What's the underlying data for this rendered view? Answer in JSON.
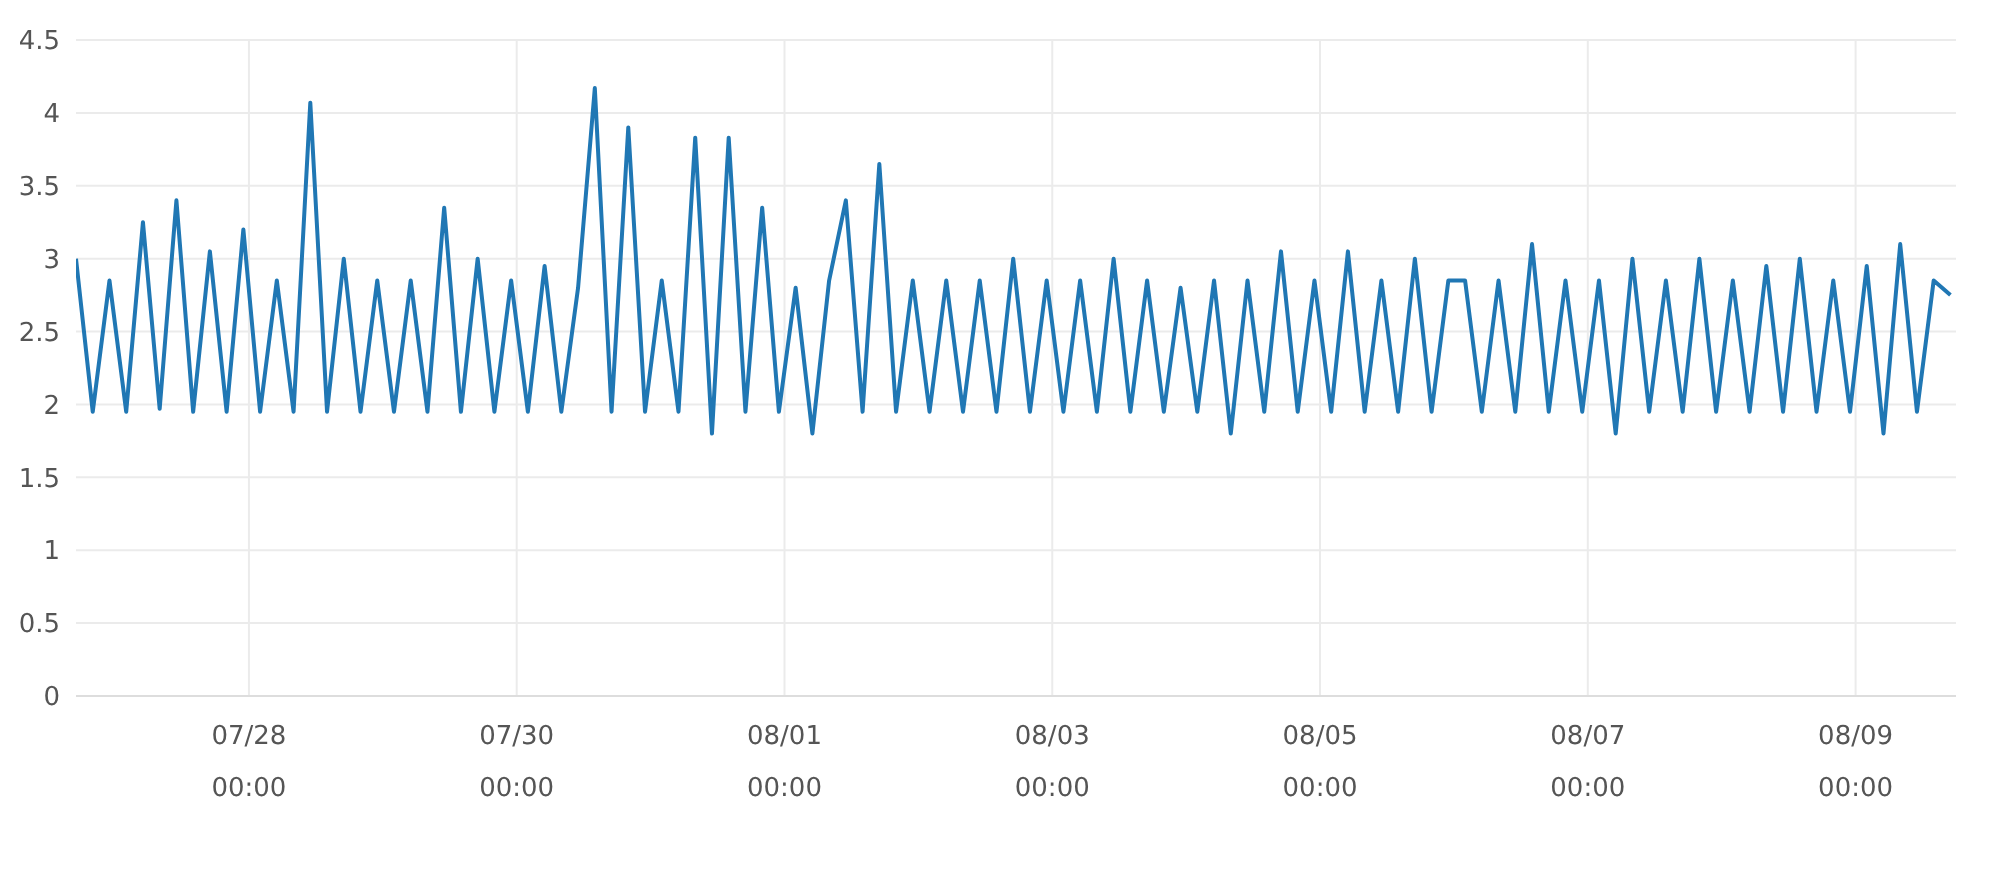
{
  "chart_data": {
    "type": "line",
    "grid": true,
    "xlim": [
      "--07-26T17:00",
      "--08-09T18:00"
    ],
    "xticks": [
      {
        "value": "--07-28T00:00",
        "label": "07/28\n00:00"
      },
      {
        "value": "--07-30T00:00",
        "label": "07/30\n00:00"
      },
      {
        "value": "--08-01T00:00",
        "label": "08/01\n00:00"
      },
      {
        "value": "--08-03T00:00",
        "label": "08/03\n00:00"
      },
      {
        "value": "--08-05T00:00",
        "label": "08/05\n00:00"
      },
      {
        "value": "--08-07T00:00",
        "label": "08/07\n00:00"
      },
      {
        "value": "--08-09T00:00",
        "label": "08/09\n00:00"
      }
    ],
    "ylim": [
      0,
      4.5
    ],
    "yticks": [
      0,
      0.5,
      1,
      1.5,
      2,
      2.5,
      3,
      3.5,
      4,
      4.5
    ],
    "x": [
      "--07-26T17:00",
      "--07-26T20:00",
      "--07-26T23:00",
      "--07-27T02:00",
      "--07-27T05:00",
      "--07-27T08:00",
      "--07-27T11:00",
      "--07-27T14:00",
      "--07-27T17:00",
      "--07-27T20:00",
      "--07-27T23:00",
      "--07-28T02:00",
      "--07-28T05:00",
      "--07-28T08:00",
      "--07-28T11:00",
      "--07-28T14:00",
      "--07-28T17:00",
      "--07-28T20:00",
      "--07-28T23:00",
      "--07-29T02:00",
      "--07-29T05:00",
      "--07-29T08:00",
      "--07-29T11:00",
      "--07-29T14:00",
      "--07-29T17:00",
      "--07-29T20:00",
      "--07-29T23:00",
      "--07-30T02:00",
      "--07-30T05:00",
      "--07-30T08:00",
      "--07-30T11:00",
      "--07-30T14:00",
      "--07-30T17:00",
      "--07-30T20:00",
      "--07-30T23:00",
      "--07-31T02:00",
      "--07-31T05:00",
      "--07-31T08:00",
      "--07-31T11:00",
      "--07-31T14:00",
      "--07-31T17:00",
      "--07-31T20:00",
      "--07-31T23:00",
      "--08-01T02:00",
      "--08-01T05:00",
      "--08-01T08:00",
      "--08-01T11:00",
      "--08-01T14:00",
      "--08-01T17:00",
      "--08-01T20:00",
      "--08-01T23:00",
      "--08-02T02:00",
      "--08-02T05:00",
      "--08-02T08:00",
      "--08-02T11:00",
      "--08-02T14:00",
      "--08-02T17:00",
      "--08-02T20:00",
      "--08-02T23:00",
      "--08-03T02:00",
      "--08-03T05:00",
      "--08-03T08:00",
      "--08-03T11:00",
      "--08-03T14:00",
      "--08-03T17:00",
      "--08-03T20:00",
      "--08-03T23:00",
      "--08-04T02:00",
      "--08-04T05:00",
      "--08-04T08:00",
      "--08-04T11:00",
      "--08-04T14:00",
      "--08-04T17:00",
      "--08-04T20:00",
      "--08-04T23:00",
      "--08-05T02:00",
      "--08-05T05:00",
      "--08-05T08:00",
      "--08-05T11:00",
      "--08-05T14:00",
      "--08-05T17:00",
      "--08-05T20:00",
      "--08-05T23:00",
      "--08-06T02:00",
      "--08-06T05:00",
      "--08-06T08:00",
      "--08-06T11:00",
      "--08-06T14:00",
      "--08-06T17:00",
      "--08-06T20:00",
      "--08-06T23:00",
      "--08-07T02:00",
      "--08-07T05:00",
      "--08-07T08:00",
      "--08-07T11:00",
      "--08-07T14:00",
      "--08-07T17:00",
      "--08-07T20:00",
      "--08-07T23:00",
      "--08-08T02:00",
      "--08-08T05:00",
      "--08-08T08:00",
      "--08-08T11:00",
      "--08-08T14:00",
      "--08-08T17:00",
      "--08-08T20:00",
      "--08-08T23:00",
      "--08-09T02:00",
      "--08-09T05:00",
      "--08-09T08:00",
      "--08-09T11:00",
      "--08-09T14:00",
      "--08-09T17:00"
    ],
    "series": [
      {
        "color": "#2077b4",
        "values": [
          3.0,
          1.95,
          2.85,
          1.95,
          3.25,
          1.97,
          3.4,
          1.95,
          3.05,
          1.95,
          3.2,
          1.95,
          2.85,
          1.95,
          4.07,
          1.95,
          3.0,
          1.95,
          2.85,
          1.95,
          2.85,
          1.95,
          3.35,
          1.95,
          3.0,
          1.95,
          2.85,
          1.95,
          2.95,
          1.95,
          2.8,
          4.17,
          1.95,
          3.9,
          1.95,
          2.85,
          1.95,
          3.83,
          1.8,
          3.83,
          1.95,
          3.35,
          1.95,
          2.8,
          1.8,
          2.85,
          3.4,
          1.95,
          3.65,
          1.95,
          2.85,
          1.95,
          2.85,
          1.95,
          2.85,
          1.95,
          3.0,
          1.95,
          2.85,
          1.95,
          2.85,
          1.95,
          3.0,
          1.95,
          2.85,
          1.95,
          2.8,
          1.95,
          2.85,
          1.8,
          2.85,
          1.95,
          3.05,
          1.95,
          2.85,
          1.95,
          3.05,
          1.95,
          2.85,
          1.95,
          3.0,
          1.95,
          2.85,
          2.85,
          1.95,
          2.85,
          1.95,
          3.1,
          1.95,
          2.85,
          1.95,
          2.85,
          1.8,
          3.0,
          1.95,
          2.85,
          1.95,
          3.0,
          1.95,
          2.85,
          1.95,
          2.95,
          1.95,
          3.0,
          1.95,
          2.85,
          1.95,
          2.95,
          1.8,
          3.1,
          1.95,
          2.85,
          2.75
        ]
      }
    ]
  }
}
